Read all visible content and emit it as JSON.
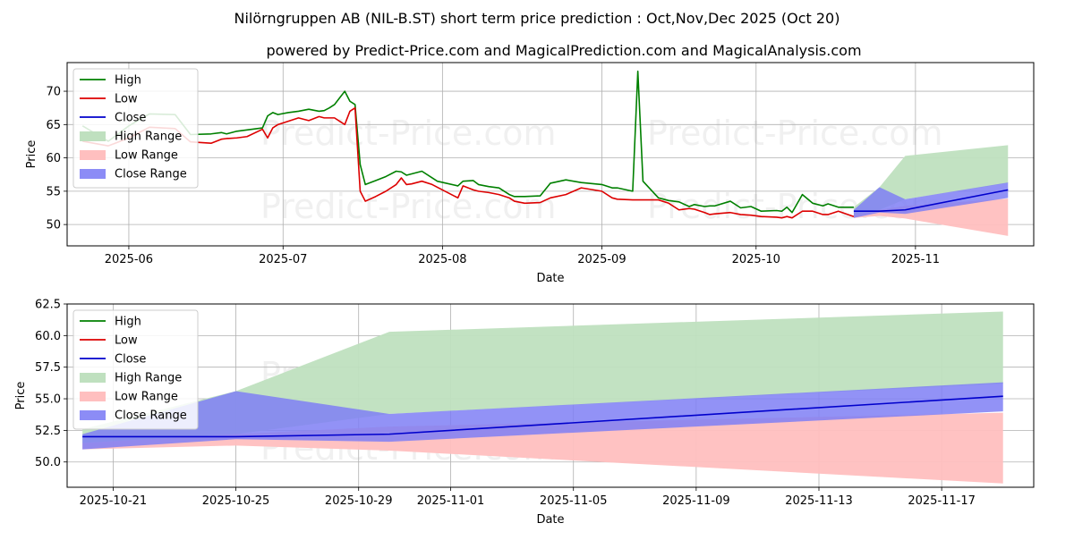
{
  "title": "Nilörngruppen AB (NIL-B.ST) short term price prediction : Oct,Nov,Dec 2025 (Oct 20)",
  "subtitle": "powered by Predict-Price.com and MagicalPrediction.com and MagicalAnalysis.com",
  "watermark": "Predict-Price.com",
  "colors": {
    "high": "#008000",
    "low": "#dd0000",
    "close": "#0000cc",
    "high_range": "#bfe0bf",
    "low_range": "#ffbfbf",
    "close_range": "#7f7ff5",
    "grid": "#b0b0b0"
  },
  "chart_data": [
    {
      "type": "line",
      "xlabel": "Date",
      "ylabel": "Price",
      "ylim": [
        46.8,
        74.3
      ],
      "xlim": [
        "2025-05-20",
        "2025-11-24"
      ],
      "grid": true,
      "legend_position": "top-left",
      "x_ticks": [
        "2025-06-01",
        "2025-07-01",
        "2025-08-01",
        "2025-09-01",
        "2025-10-01",
        "2025-11-01"
      ],
      "x_tick_labels": [
        "2025-06",
        "2025-07",
        "2025-08",
        "2025-09",
        "2025-10",
        "2025-11"
      ],
      "y_ticks": [
        50,
        55,
        60,
        65,
        70
      ],
      "legend": [
        "High",
        "Low",
        "Close",
        "High Range",
        "Low Range",
        "Close Range"
      ],
      "series": [
        {
          "name": "High",
          "x": [
            "2025-05-23",
            "2025-05-28",
            "2025-06-01",
            "2025-06-05",
            "2025-06-10",
            "2025-06-13",
            "2025-06-17",
            "2025-06-19",
            "2025-06-20",
            "2025-06-22",
            "2025-06-24",
            "2025-06-27",
            "2025-06-28",
            "2025-06-29",
            "2025-06-30",
            "2025-07-02",
            "2025-07-04",
            "2025-07-06",
            "2025-07-08",
            "2025-07-09",
            "2025-07-10",
            "2025-07-11",
            "2025-07-13",
            "2025-07-14",
            "2025-07-15",
            "2025-07-16",
            "2025-07-17",
            "2025-07-19",
            "2025-07-21",
            "2025-07-23",
            "2025-07-24",
            "2025-07-25",
            "2025-07-26",
            "2025-07-28",
            "2025-07-30",
            "2025-07-31",
            "2025-08-04",
            "2025-08-05",
            "2025-08-07",
            "2025-08-08",
            "2025-08-10",
            "2025-08-12",
            "2025-08-14",
            "2025-08-15",
            "2025-08-17",
            "2025-08-20",
            "2025-08-22",
            "2025-08-25",
            "2025-08-28",
            "2025-09-01",
            "2025-09-03",
            "2025-09-04",
            "2025-09-07",
            "2025-09-08",
            "2025-09-09",
            "2025-09-12",
            "2025-09-14",
            "2025-09-16",
            "2025-09-18",
            "2025-09-19",
            "2025-09-21",
            "2025-09-22",
            "2025-09-23",
            "2025-09-26",
            "2025-09-28",
            "2025-09-30",
            "2025-10-02",
            "2025-10-05",
            "2025-10-06",
            "2025-10-07",
            "2025-10-08",
            "2025-10-10",
            "2025-10-12",
            "2025-10-14",
            "2025-10-15",
            "2025-10-17",
            "2025-10-20"
          ],
          "values": [
            64.8,
            62.5,
            64.8,
            66.6,
            66.5,
            63.5,
            63.6,
            63.8,
            63.6,
            64.0,
            64.2,
            64.5,
            66.3,
            66.8,
            66.5,
            66.8,
            67.0,
            67.3,
            67.0,
            67.1,
            67.5,
            68.0,
            70.0,
            68.5,
            68.0,
            59.0,
            56.0,
            56.6,
            57.2,
            58.0,
            57.9,
            57.4,
            57.6,
            58.0,
            57.0,
            56.5,
            55.8,
            56.5,
            56.6,
            56.0,
            55.7,
            55.5,
            54.5,
            54.2,
            54.2,
            54.3,
            56.2,
            56.7,
            56.3,
            56.0,
            55.5,
            55.5,
            55.0,
            73.0,
            56.5,
            54.0,
            53.6,
            53.4,
            52.7,
            53.0,
            52.7,
            52.8,
            52.8,
            53.5,
            52.5,
            52.7,
            52.0,
            52.1,
            52.0,
            52.6,
            51.8,
            54.5,
            53.2,
            52.8,
            53.1,
            52.6,
            52.6
          ]
        },
        {
          "name": "Low",
          "x": [
            "2025-05-23",
            "2025-05-28",
            "2025-06-01",
            "2025-06-05",
            "2025-06-10",
            "2025-06-13",
            "2025-06-17",
            "2025-06-19",
            "2025-06-20",
            "2025-06-22",
            "2025-06-24",
            "2025-06-27",
            "2025-06-28",
            "2025-06-29",
            "2025-06-30",
            "2025-07-02",
            "2025-07-04",
            "2025-07-06",
            "2025-07-08",
            "2025-07-09",
            "2025-07-10",
            "2025-07-11",
            "2025-07-13",
            "2025-07-14",
            "2025-07-15",
            "2025-07-16",
            "2025-07-17",
            "2025-07-19",
            "2025-07-21",
            "2025-07-23",
            "2025-07-24",
            "2025-07-25",
            "2025-07-26",
            "2025-07-28",
            "2025-07-30",
            "2025-07-31",
            "2025-08-04",
            "2025-08-05",
            "2025-08-07",
            "2025-08-08",
            "2025-08-10",
            "2025-08-12",
            "2025-08-14",
            "2025-08-15",
            "2025-08-17",
            "2025-08-20",
            "2025-08-22",
            "2025-08-25",
            "2025-08-28",
            "2025-09-01",
            "2025-09-03",
            "2025-09-04",
            "2025-09-07",
            "2025-09-08",
            "2025-09-09",
            "2025-09-12",
            "2025-09-14",
            "2025-09-16",
            "2025-09-18",
            "2025-09-19",
            "2025-09-21",
            "2025-09-22",
            "2025-09-23",
            "2025-09-26",
            "2025-09-28",
            "2025-09-30",
            "2025-10-02",
            "2025-10-05",
            "2025-10-06",
            "2025-10-07",
            "2025-10-08",
            "2025-10-10",
            "2025-10-12",
            "2025-10-14",
            "2025-10-15",
            "2025-10-17",
            "2025-10-20"
          ],
          "values": [
            62.5,
            61.8,
            63.0,
            64.6,
            64.4,
            62.4,
            62.2,
            62.8,
            62.9,
            63.0,
            63.2,
            64.3,
            63.0,
            64.5,
            65.0,
            65.5,
            66.0,
            65.6,
            66.2,
            66.0,
            66.0,
            66.0,
            65.0,
            67.0,
            67.5,
            55.0,
            53.5,
            54.2,
            55.0,
            56.0,
            57.0,
            56.0,
            56.1,
            56.5,
            56.0,
            55.6,
            54.0,
            55.8,
            55.2,
            55.0,
            54.8,
            54.5,
            54.0,
            53.5,
            53.2,
            53.3,
            54.0,
            54.5,
            55.5,
            55.0,
            54.0,
            53.8,
            53.7,
            53.7,
            53.7,
            53.7,
            53.2,
            52.2,
            52.4,
            52.3,
            51.8,
            51.5,
            51.6,
            51.8,
            51.5,
            51.4,
            51.2,
            51.1,
            51.0,
            51.2,
            51.0,
            52.0,
            52.0,
            51.5,
            51.5,
            52.0,
            51.2
          ]
        },
        {
          "name": "Close",
          "x": [
            "2025-10-20",
            "2025-10-25",
            "2025-10-30",
            "2025-11-19"
          ],
          "values": [
            52.0,
            52.0,
            52.2,
            55.2
          ]
        }
      ],
      "ranges": [
        {
          "name": "High Range",
          "x": [
            "2025-10-20",
            "2025-10-25",
            "2025-10-30",
            "2025-11-19"
          ],
          "upper": [
            52.6,
            55.6,
            60.3,
            61.9
          ],
          "lower": [
            51.5,
            52.2,
            53.8,
            56.2
          ]
        },
        {
          "name": "Low Range",
          "x": [
            "2025-10-20",
            "2025-10-25",
            "2025-10-30",
            "2025-11-19"
          ],
          "upper": [
            51.5,
            52.2,
            52.8,
            53.9
          ],
          "lower": [
            51.0,
            51.3,
            50.9,
            48.3
          ]
        },
        {
          "name": "Close Range",
          "x": [
            "2025-10-20",
            "2025-10-25",
            "2025-10-30",
            "2025-11-19"
          ],
          "upper": [
            52.2,
            55.6,
            53.8,
            56.3
          ],
          "lower": [
            51.0,
            51.8,
            51.6,
            54.0
          ]
        }
      ]
    },
    {
      "type": "line",
      "xlabel": "Date",
      "ylabel": "Price",
      "ylim": [
        48.0,
        62.5
      ],
      "xlim": [
        "2025-10-19.5",
        "2025-11-20.0"
      ],
      "grid": true,
      "legend_position": "top-left",
      "x_ticks": [
        "2025-10-21",
        "2025-10-25",
        "2025-10-29",
        "2025-11-01",
        "2025-11-05",
        "2025-11-09",
        "2025-11-13",
        "2025-11-17"
      ],
      "x_tick_labels": [
        "2025-10-21",
        "2025-10-25",
        "2025-10-29",
        "2025-11-01",
        "2025-11-05",
        "2025-11-09",
        "2025-11-13",
        "2025-11-17"
      ],
      "y_ticks": [
        50.0,
        52.5,
        55.0,
        57.5,
        60.0,
        62.5
      ],
      "y_tick_labels": [
        "50.0",
        "52.5",
        "55.0",
        "57.5",
        "60.0",
        "62.5"
      ],
      "legend": [
        "High",
        "Low",
        "Close",
        "High Range",
        "Low Range",
        "Close Range"
      ],
      "series": [
        {
          "name": "Close",
          "x": [
            "2025-10-20",
            "2025-10-25",
            "2025-10-30",
            "2025-11-19"
          ],
          "values": [
            52.0,
            52.0,
            52.2,
            55.2
          ]
        }
      ],
      "ranges": [
        {
          "name": "High Range",
          "x": [
            "2025-10-20",
            "2025-10-25",
            "2025-10-30",
            "2025-11-19"
          ],
          "upper": [
            52.6,
            55.6,
            60.3,
            61.9
          ],
          "lower": [
            51.5,
            52.2,
            53.8,
            56.2
          ]
        },
        {
          "name": "Low Range",
          "x": [
            "2025-10-20",
            "2025-10-25",
            "2025-10-30",
            "2025-11-19"
          ],
          "upper": [
            51.5,
            52.2,
            52.8,
            53.9
          ],
          "lower": [
            51.0,
            51.3,
            50.9,
            48.3
          ]
        },
        {
          "name": "Close Range",
          "x": [
            "2025-10-20",
            "2025-10-25",
            "2025-10-30",
            "2025-11-19"
          ],
          "upper": [
            52.2,
            55.6,
            53.8,
            56.3
          ],
          "lower": [
            51.0,
            51.8,
            51.6,
            54.0
          ]
        }
      ]
    }
  ]
}
